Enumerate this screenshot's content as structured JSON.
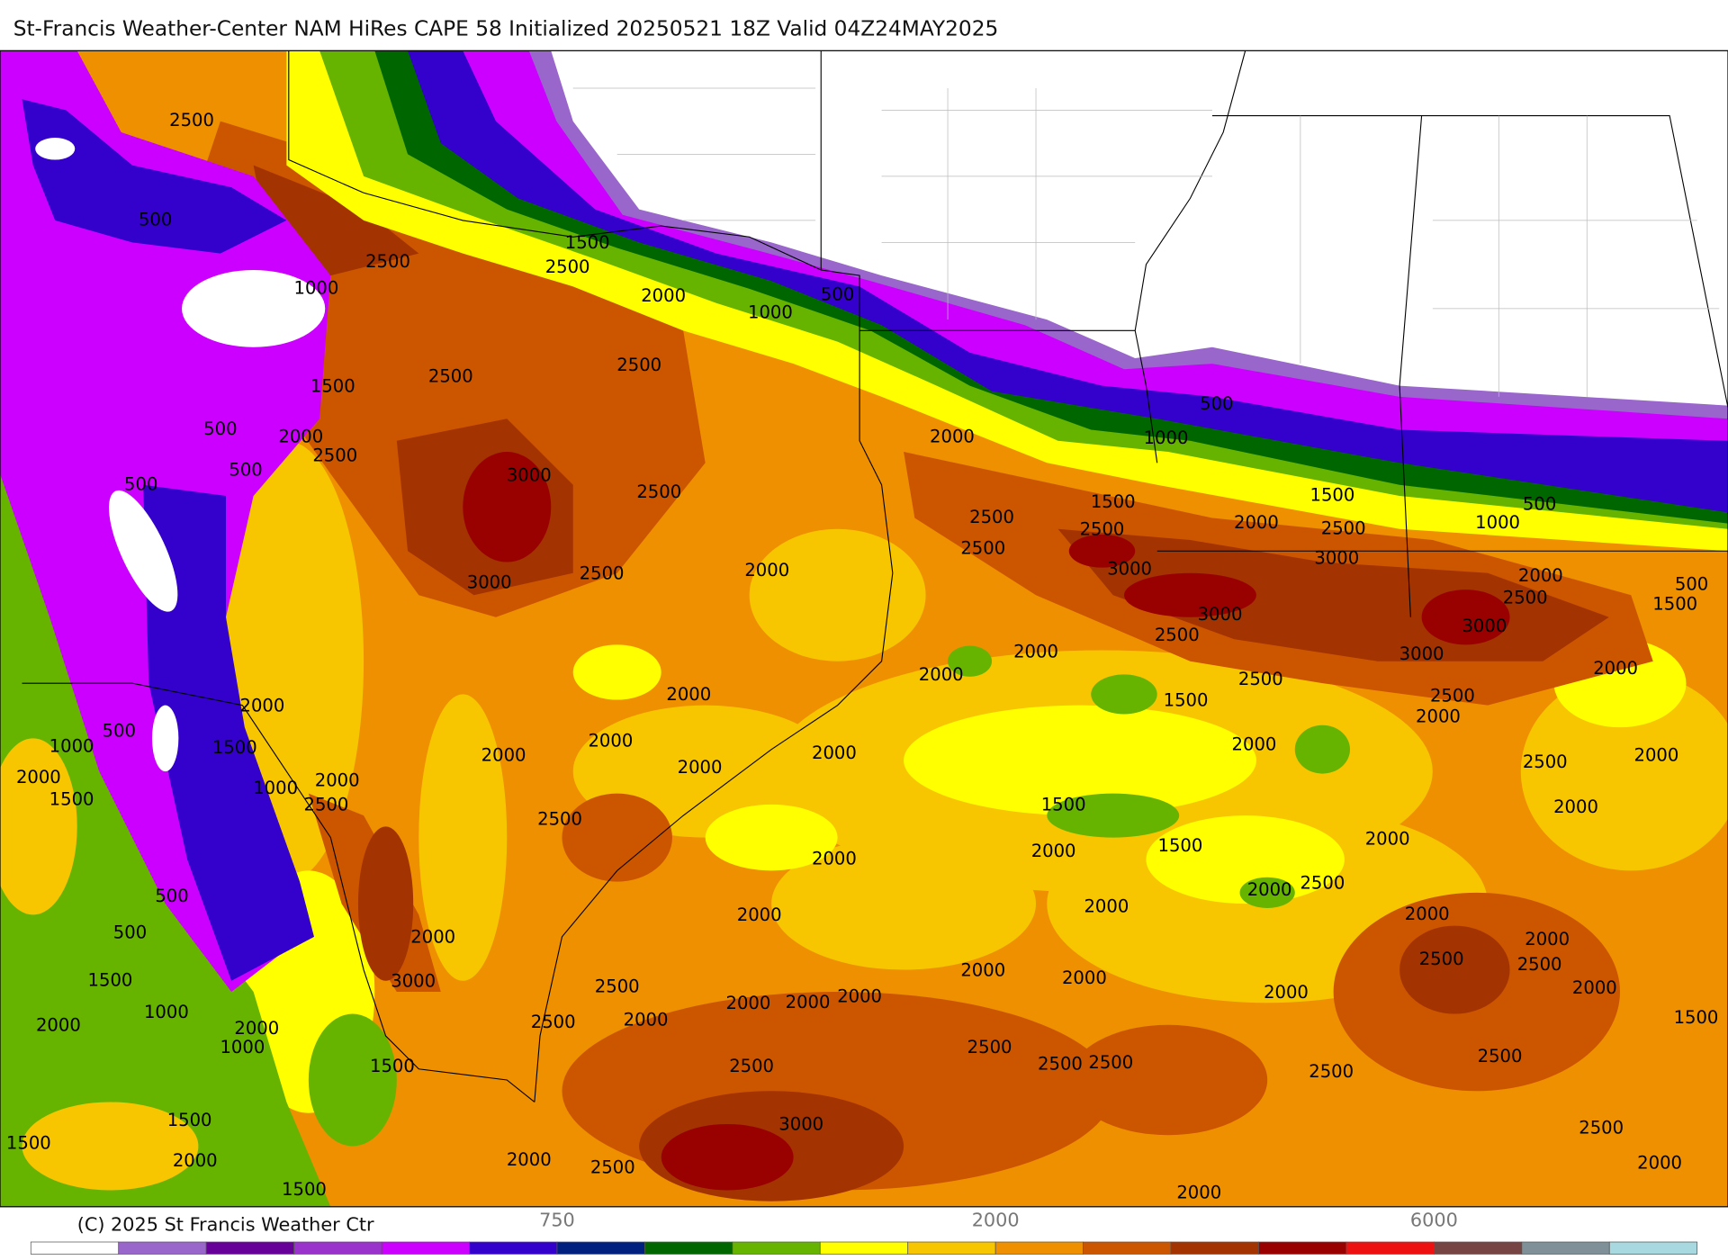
{
  "title": "St-Francis Weather-Center NAM HiRes CAPE  58 Initialized 20250521 18Z Valid 04Z24MAY2025",
  "copyright": "(C) 2025 St Francis Weather Ctr",
  "colorbar": {
    "colors": [
      "#ffffff",
      "#9966cc",
      "#660099",
      "#9933cc",
      "#cc00ff",
      "#3300cc",
      "#002080",
      "#006600",
      "#66b300",
      "#ffff00",
      "#f7c600",
      "#ee9000",
      "#cc5500",
      "#a33300",
      "#990000",
      "#ee1111",
      "#774444",
      "#7f9098",
      "#a8d8e0"
    ],
    "labels": [
      "750",
      "2000",
      "6000"
    ]
  },
  "contour_labels": [
    "2500",
    "500",
    "2500",
    "1000",
    "1500",
    "2500",
    "2000",
    "1000",
    "500",
    "2500",
    "2500",
    "1500",
    "500",
    "2000",
    "2500",
    "500",
    "500",
    "3000",
    "2500",
    "2000",
    "1000",
    "500",
    "2500",
    "1500",
    "2500",
    "2500",
    "3000",
    "2000",
    "1500",
    "2500",
    "3000",
    "1000",
    "500",
    "3000",
    "2500",
    "2000",
    "2000",
    "2500",
    "500",
    "1500",
    "3000",
    "2500",
    "3000",
    "3000",
    "2500",
    "2000",
    "2000",
    "2000",
    "1500",
    "2000",
    "2500",
    "2000",
    "2000",
    "500",
    "1000",
    "1500",
    "2000",
    "2000",
    "2000",
    "2000",
    "2000",
    "2000",
    "2500",
    "2000",
    "1000",
    "2000",
    "1500",
    "2500",
    "2500",
    "1500",
    "2000",
    "2000",
    "2000",
    "1500",
    "2000",
    "500",
    "2000",
    "2500",
    "2000",
    "2000",
    "2000",
    "500",
    "2000",
    "2000",
    "2500",
    "2500",
    "1500",
    "3000",
    "2000",
    "2000",
    "1000",
    "2500",
    "2000",
    "2000",
    "2000",
    "2000",
    "2000",
    "2000",
    "2000",
    "2500",
    "2000",
    "1500",
    "1000",
    "2500",
    "1500",
    "2500",
    "2500",
    "2500",
    "2500",
    "2500",
    "1500",
    "1500",
    "3000",
    "2500",
    "2000",
    "2000",
    "2500",
    "2000",
    "1500",
    "2000"
  ]
}
